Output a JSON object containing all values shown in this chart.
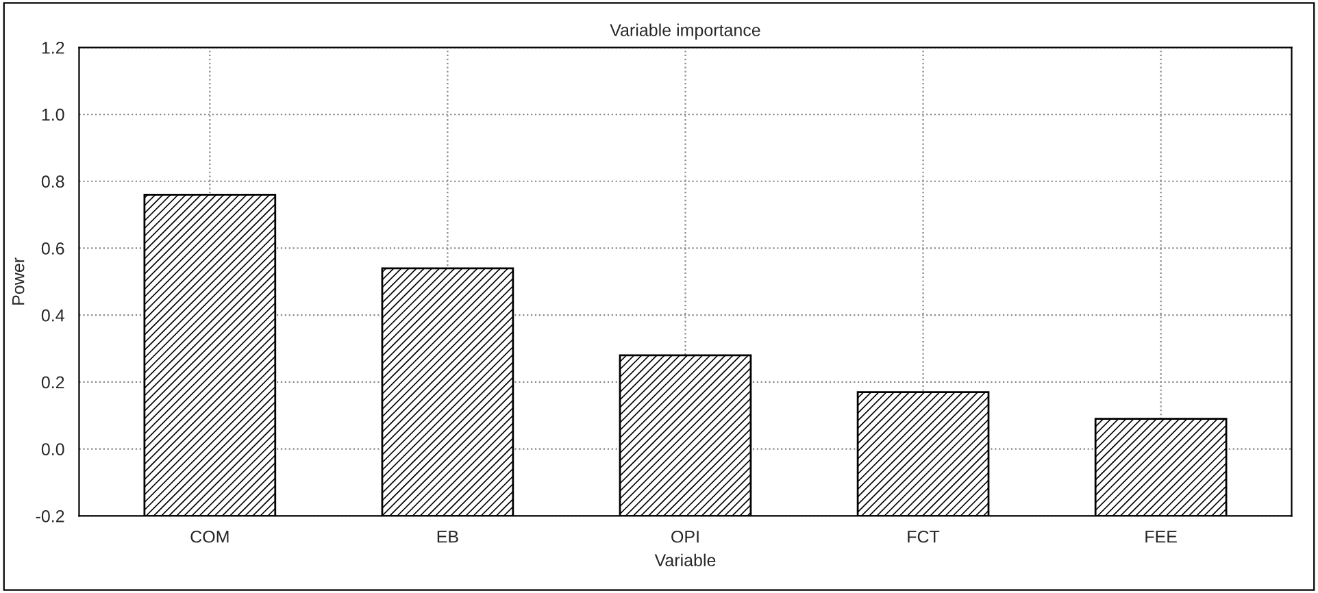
{
  "chart_data": {
    "type": "bar",
    "title": "Variable importance",
    "xlabel": "Variable",
    "ylabel": "Power",
    "categories": [
      "COM",
      "EB",
      "OPI",
      "FCT",
      "FEE"
    ],
    "base": [
      -0.2,
      -0.2,
      -0.2,
      -0.2,
      -0.2
    ],
    "values": [
      0.96,
      0.74,
      0.48,
      0.37,
      0.29
    ],
    "color": "#000000",
    "ylim": [
      -0.2,
      1.2
    ],
    "yticks": [
      {
        "value": -0.2,
        "label": "-0.2"
      },
      {
        "value": 0,
        "label": "0.0"
      },
      {
        "value": 0.2,
        "label": "0.2"
      },
      {
        "value": 0.4,
        "label": "0.4"
      },
      {
        "value": 0.6,
        "label": "0.6"
      },
      {
        "value": 0.8,
        "label": "0.8"
      },
      {
        "value": 1.0,
        "label": "1.0"
      },
      {
        "value": 1.2,
        "label": "1.2"
      }
    ],
    "grid": true
  }
}
